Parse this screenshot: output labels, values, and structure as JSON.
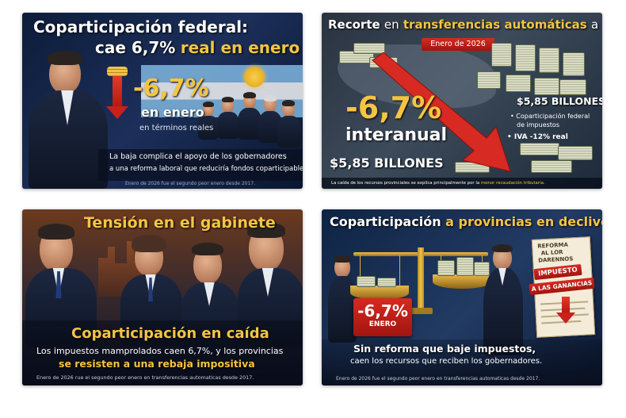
{
  "panels": {
    "p1": {
      "title_line1": "Coparticipación federal:",
      "title_line2_part1": "cae 6,7%",
      "title_line2_part2": "real en enero",
      "big_value": "-6,7%",
      "sub1": "en enero",
      "sub2": "en términos reales",
      "caption_line1": "La  baja complica el apoyo de los gobernadores",
      "caption_line2": "a una reforma laboral que reduciría fondos coparticipables",
      "footnote": "Enero de 2026 fue el segundo peor enero desde 2017."
    },
    "p2": {
      "title_part1": "Recorte",
      "title_part2": "en",
      "title_part3": "transferencias automáticas",
      "title_part4": "a provincias",
      "date_badge": "Enero de 2026",
      "big_value": "-6,7%",
      "big_label": "interanual",
      "left_amount": "$5,85 BILLONES",
      "right_amount": "$5,85 BILLONES",
      "bullet1_line1": "Coparticipación federal",
      "bullet1_line2": "de impuestos",
      "bullet2": "IVA  -12% real",
      "footnote_part1": "La caída de los recursos provinciales se explica principalmente por la",
      "footnote_part2": "menor recaudación tributaria."
    },
    "p3": {
      "title": "Tensión en el gabinete",
      "headline": "Coparticipación en caída",
      "body_line1": "Los impuestos mamprolados caen 6,7%, y los provincias",
      "body_line2": "se resisten a una rebaja impositiva",
      "footnote": "Enero de 2026 rue el segundo peor enero en transferencias automaticas desde 2017."
    },
    "p4": {
      "title_part1": "Coparticipación",
      "title_part2": "a provincias en declive",
      "doc_line1": "REFORMA",
      "doc_line2": "AL LOR",
      "doc_line3": "DARENNOS",
      "doc_stamp1": "IMPUESTO",
      "doc_stamp2": "A LAS GANANCIAS",
      "big_value": "-6,7%",
      "big_label": "ENERO",
      "body_line1": "Sin reforma que baje impuestos,",
      "body_line2": "caen los recursos que reciben los gobernadores.",
      "footnote": "Enero de 2026 fue el segundo peor enero en transferencias automaticas desde 2017."
    }
  },
  "colors": {
    "gold": "#f4c542",
    "red": "#d62a22",
    "navy": "#0d1c3a"
  }
}
